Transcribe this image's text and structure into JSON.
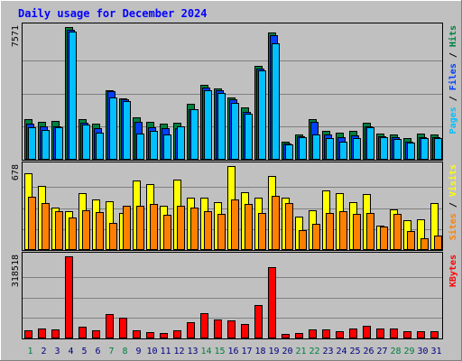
{
  "chart_data": {
    "type": "bar",
    "title": "Daily usage for December 2024",
    "categories": [
      "1",
      "2",
      "3",
      "4",
      "5",
      "6",
      "7",
      "8",
      "9",
      "10",
      "11",
      "12",
      "13",
      "14",
      "15",
      "16",
      "17",
      "18",
      "19",
      "20",
      "21",
      "22",
      "23",
      "24",
      "25",
      "26",
      "27",
      "28",
      "29",
      "30",
      "31"
    ],
    "weekend_days": [
      "1",
      "7",
      "8",
      "14",
      "15",
      "21",
      "22",
      "28",
      "29"
    ],
    "panels": [
      {
        "id": "hits-files-pages",
        "max_label": "7571",
        "ymax": 7571,
        "legend": [
          {
            "label": "Pages",
            "color": "#00c0ff"
          },
          {
            "label": "Files",
            "color": "#0040ff"
          },
          {
            "label": "Hits",
            "color": "#008040"
          }
        ],
        "series": [
          {
            "name": "Hits",
            "color": "#008040",
            "values": [
              2300,
              2150,
              2200,
              7571,
              2300,
              2050,
              3950,
              3500,
              2400,
              2150,
              2050,
              2100,
              3200,
              4300,
              4050,
              3550,
              3000,
              5350,
              7250,
              1050,
              1450,
              2300,
              1650,
              1550,
              1650,
              2100,
              1500,
              1450,
              1250,
              1500,
              1450
            ]
          },
          {
            "name": "Files",
            "color": "#0040ff",
            "values": [
              2050,
              1900,
              1900,
              7400,
              2100,
              1800,
              3900,
              3450,
              2150,
              1850,
              1800,
              1800,
              2900,
              4100,
              3950,
              3450,
              2750,
              5200,
              7100,
              950,
              1350,
              2150,
              1450,
              1300,
              1400,
              1900,
              1350,
              1300,
              1050,
              1300,
              1300
            ]
          },
          {
            "name": "Pages",
            "color": "#00c0ff",
            "values": [
              1850,
              1700,
              1850,
              7300,
              2000,
              1550,
              3550,
              3350,
              1500,
              1650,
              1450,
              1900,
              2900,
              3950,
              3800,
              3250,
              2650,
              5100,
              6650,
              850,
              1300,
              1450,
              1250,
              1050,
              1250,
              1850,
              1300,
              1200,
              1000,
              1250,
              1250
            ]
          }
        ]
      },
      {
        "id": "visits-sites",
        "max_label": "678",
        "ymax": 678,
        "legend": [
          {
            "label": "Sites",
            "color": "#ff8000"
          },
          {
            "label": "Visits",
            "color": "#ffff00"
          }
        ],
        "series": [
          {
            "name": "Visits",
            "color": "#ffff00",
            "values": [
              620,
              520,
              340,
              310,
              460,
              410,
              395,
              300,
              560,
              530,
              360,
              570,
              420,
              420,
              390,
              678,
              470,
              420,
              600,
              420,
              270,
              320,
              480,
              460,
              390,
              450,
              200,
              330,
              240,
              250,
              380
            ]
          },
          {
            "name": "Sites",
            "color": "#ff8000",
            "values": [
              430,
              380,
              310,
              260,
              320,
              305,
              220,
              355,
              360,
              370,
              285,
              360,
              340,
              310,
              290,
              410,
              370,
              300,
              440,
              380,
              160,
              215,
              300,
              310,
              290,
              300,
              190,
              295,
              150,
              95,
              120
            ]
          }
        ]
      },
      {
        "id": "kbytes",
        "max_label": "318518",
        "ymax": 318518,
        "legend": [
          {
            "label": "KBytes",
            "color": "#ff0000"
          }
        ],
        "series": [
          {
            "name": "KBytes",
            "color": "#ff0000",
            "values": [
              30000,
              38000,
              36000,
              318518,
              47000,
              30000,
              96000,
              80000,
              32000,
              25000,
              22000,
              32000,
              62000,
              97000,
              72000,
              70000,
              55000,
              130000,
              275000,
              18000,
              22000,
              35000,
              36000,
              28000,
              38000,
              50000,
              40000,
              38000,
              28000,
              28000,
              28000
            ]
          }
        ]
      }
    ]
  }
}
